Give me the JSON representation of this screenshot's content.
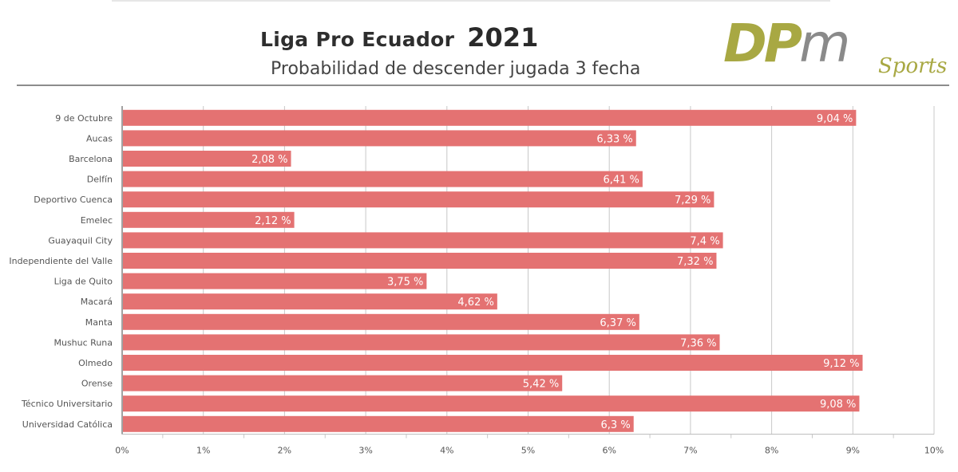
{
  "header": {
    "title": "Liga Pro Ecuador",
    "year": "2021",
    "subtitle": "Probabilidad de descender jugada 3 fecha"
  },
  "logo": {
    "brand_main": "DP",
    "brand_accent": "m",
    "brand_sub": "Sports",
    "colors": {
      "olive": "#a8a843",
      "grey": "#8a8a8a"
    }
  },
  "colors": {
    "bar": "#e47272",
    "grid": "#c8c8c8",
    "axis_text": "#555555"
  },
  "chart_data": {
    "type": "bar",
    "orientation": "horizontal",
    "title": "",
    "xlabel": "",
    "ylabel": "",
    "xlim": [
      0,
      10
    ],
    "x_ticks": [
      "0%",
      "1%",
      "2%",
      "3%",
      "4%",
      "5%",
      "6%",
      "7%",
      "8%",
      "9%",
      "10%"
    ],
    "categories": [
      "9 de Octubre",
      "Aucas",
      "Barcelona",
      "Delfín",
      "Deportivo Cuenca",
      "Emelec",
      "Guayaquil City",
      "Independiente del Valle",
      "Liga de Quito",
      "Macará",
      "Manta",
      "Mushuc Runa",
      "Olmedo",
      "Orense",
      "Técnico Universitario",
      "Universidad Católica"
    ],
    "values": [
      9.04,
      6.33,
      2.08,
      6.41,
      7.29,
      2.12,
      7.4,
      7.32,
      3.75,
      4.62,
      6.37,
      7.36,
      9.12,
      5.42,
      9.08,
      6.3
    ],
    "value_labels": [
      "9,04 %",
      "6,33 %",
      "2,08 %",
      "6,41 %",
      "7,29 %",
      "2,12 %",
      "7,4 %",
      "7,32 %",
      "3,75 %",
      "4,62 %",
      "6,37 %",
      "7,36 %",
      "9,12 %",
      "5,42 %",
      "9,08 %",
      "6,3 %"
    ],
    "grid": true,
    "legend": "none"
  }
}
